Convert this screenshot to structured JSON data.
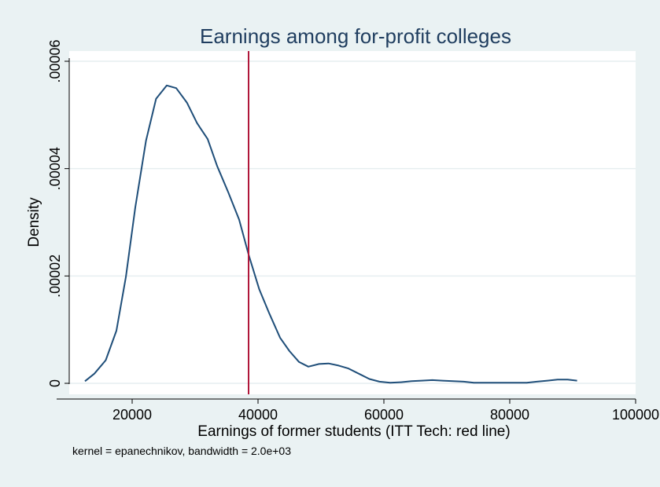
{
  "chart_data": {
    "type": "line",
    "title": "Earnings among for-profit colleges",
    "xlabel": "Earnings of former students (ITT Tech: red line)",
    "ylabel": "Density",
    "note": "kernel = epanechnikov, bandwidth =  2.0e+03",
    "xlim": [
      10000,
      100000
    ],
    "ylim": [
      0,
      6e-05
    ],
    "x_ticks": [
      20000,
      40000,
      60000,
      80000,
      100000
    ],
    "x_tick_labels": [
      "20000",
      "40000",
      "60000",
      "80000",
      "100000"
    ],
    "y_ticks": [
      0,
      2e-05,
      4e-05,
      6e-05
    ],
    "y_tick_labels": [
      "0",
      ".00002",
      ".00004",
      ".00006"
    ],
    "grid": true,
    "colors": {
      "background": "#eaf2f3",
      "plot_background": "#ffffff",
      "line": "#1f4e79",
      "reference_line": "#b0173a",
      "title": "#1f3d5f",
      "grid": "#e6eef0"
    },
    "reference_line": {
      "x": 38500,
      "label": "ITT Tech"
    },
    "series": [
      {
        "x": [
          12500,
          14000,
          15800,
          17500,
          19000,
          20500,
          22200,
          23800,
          25500,
          27000,
          28700,
          30300,
          32000,
          33500,
          35300,
          37000,
          38500,
          40200,
          41800,
          43500,
          45000,
          46500,
          48000,
          49700,
          51200,
          52800,
          54300,
          56000,
          57700,
          59300,
          61000,
          62700,
          64400,
          66000,
          67700,
          69300,
          71000,
          72700,
          74300,
          76000,
          77700,
          79300,
          81000,
          82700,
          84300,
          86000,
          87600,
          89200,
          90700
        ],
        "y": [
          4e-07,
          1.8e-06,
          4.3e-06,
          9.8e-06,
          1.98e-05,
          3.28e-05,
          4.52e-05,
          5.3e-05,
          5.55e-05,
          5.5e-05,
          5.23e-05,
          4.85e-05,
          4.55e-05,
          4.05e-05,
          3.55e-05,
          3.05e-05,
          2.4e-05,
          1.75e-05,
          1.3e-05,
          8.5e-06,
          6e-06,
          4e-06,
          3.1e-06,
          3.6e-06,
          3.7e-06,
          3.3e-06,
          2.8e-06,
          1.8e-06,
          8e-07,
          3e-07,
          1e-07,
          2e-07,
          4e-07,
          5e-07,
          6e-07,
          5e-07,
          4e-07,
          3e-07,
          1e-07,
          1e-07,
          1e-07,
          1e-07,
          1e-07,
          1e-07,
          3e-07,
          5e-07,
          7e-07,
          7e-07,
          5e-07
        ]
      }
    ]
  }
}
